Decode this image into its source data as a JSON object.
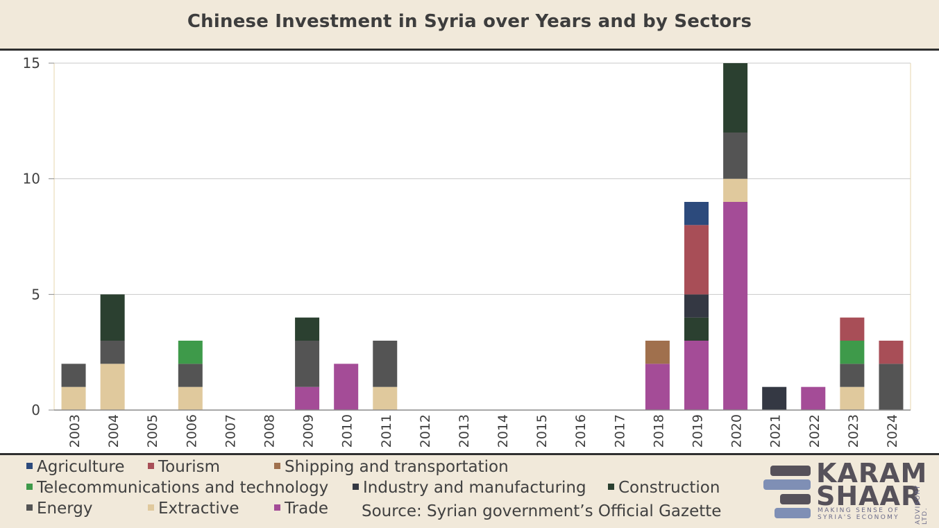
{
  "title": "Chinese Investment in Syria over Years and by Sectors",
  "source": "Source: Syrian government’s Official Gazette",
  "logo": {
    "line1": "KARAM",
    "line2": "SHAAR",
    "tagline": "MAKING SENSE OF SYRIA'S ECONOMY",
    "side": "ADVISORY LTD."
  },
  "legend": [
    {
      "name": "Agriculture",
      "color": "#2c4a7c"
    },
    {
      "name": "Tourism",
      "color": "#a84e57"
    },
    {
      "name": "Shipping and transportation",
      "color": "#a0704d"
    },
    {
      "name": "Telecommunications and technology",
      "color": "#3e9a4a"
    },
    {
      "name": "Industry and manufacturing",
      "color": "#343843"
    },
    {
      "name": "Construction",
      "color": "#2b4030"
    },
    {
      "name": "Energy",
      "color": "#545454"
    },
    {
      "name": "Extractive",
      "color": "#e0c99d"
    },
    {
      "name": "Trade",
      "color": "#a44c97"
    }
  ],
  "chart_data": {
    "type": "bar",
    "stacked": true,
    "title": "Chinese Investment in Syria over Years and by Sectors",
    "xlabel": "",
    "ylabel": "",
    "ylim": [
      0,
      15
    ],
    "yticks": [
      0,
      5,
      10,
      15
    ],
    "grid": true,
    "legend_position": "bottom",
    "categories": [
      "2003",
      "2004",
      "2005",
      "2006",
      "2007",
      "2008",
      "2009",
      "2010",
      "2011",
      "2012",
      "2013",
      "2014",
      "2015",
      "2016",
      "2017",
      "2018",
      "2019",
      "2020",
      "2021",
      "2022",
      "2023",
      "2024"
    ],
    "series": [
      {
        "name": "Trade",
        "color": "#a44c97",
        "values": [
          0,
          0,
          0,
          0,
          0,
          0,
          1,
          2,
          0,
          0,
          0,
          0,
          0,
          0,
          0,
          2,
          3,
          9,
          0,
          1,
          0,
          0
        ]
      },
      {
        "name": "Extractive",
        "color": "#e0c99d",
        "values": [
          1,
          2,
          0,
          1,
          0,
          0,
          0,
          0,
          1,
          0,
          0,
          0,
          0,
          0,
          0,
          0,
          0,
          1,
          0,
          0,
          1,
          0
        ]
      },
      {
        "name": "Energy",
        "color": "#545454",
        "values": [
          1,
          1,
          0,
          1,
          0,
          0,
          2,
          0,
          2,
          0,
          0,
          0,
          0,
          0,
          0,
          0,
          0,
          2,
          0,
          0,
          1,
          2
        ]
      },
      {
        "name": "Construction",
        "color": "#2b4030",
        "values": [
          0,
          2,
          0,
          0,
          0,
          0,
          1,
          0,
          0,
          0,
          0,
          0,
          0,
          0,
          0,
          0,
          1,
          3,
          0,
          0,
          0,
          0
        ]
      },
      {
        "name": "Industry and manufacturing",
        "color": "#343843",
        "values": [
          0,
          0,
          0,
          0,
          0,
          0,
          0,
          0,
          0,
          0,
          0,
          0,
          0,
          0,
          0,
          0,
          1,
          0,
          1,
          0,
          0,
          0
        ]
      },
      {
        "name": "Telecommunications and technology",
        "color": "#3e9a4a",
        "values": [
          0,
          0,
          0,
          1,
          0,
          0,
          0,
          0,
          0,
          0,
          0,
          0,
          0,
          0,
          0,
          0,
          0,
          0,
          0,
          0,
          1,
          0
        ]
      },
      {
        "name": "Shipping and transportation",
        "color": "#a0704d",
        "values": [
          0,
          0,
          0,
          0,
          0,
          0,
          0,
          0,
          0,
          0,
          0,
          0,
          0,
          0,
          0,
          1,
          0,
          0,
          0,
          0,
          0,
          0
        ]
      },
      {
        "name": "Tourism",
        "color": "#a84e57",
        "values": [
          0,
          0,
          0,
          0,
          0,
          0,
          0,
          0,
          0,
          0,
          0,
          0,
          0,
          0,
          0,
          0,
          3,
          0,
          0,
          0,
          1,
          1
        ]
      },
      {
        "name": "Agriculture",
        "color": "#2c4a7c",
        "values": [
          0,
          0,
          0,
          0,
          0,
          0,
          0,
          0,
          0,
          0,
          0,
          0,
          0,
          0,
          0,
          0,
          1,
          0,
          0,
          0,
          0,
          0
        ]
      }
    ]
  }
}
